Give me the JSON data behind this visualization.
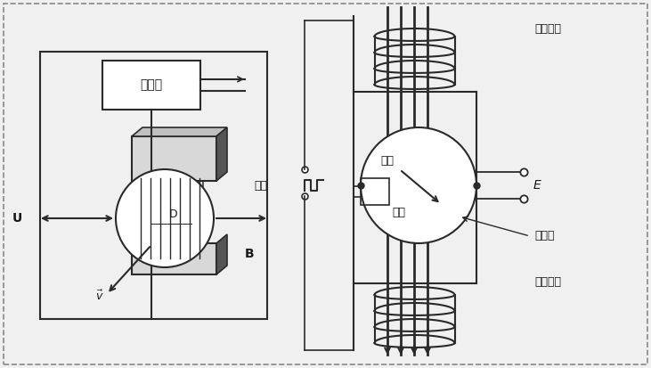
{
  "bg_color": "#f0f0f0",
  "line_color": "#2a2a2a",
  "text_color": "#1a1a1a",
  "fig_width": 7.31,
  "fig_height": 4.13,
  "labels": {
    "converter": "转换器",
    "U": "U",
    "B": "B",
    "V": "v",
    "D": "D",
    "fangbo": "方波",
    "dianji": "电极",
    "liusu": "流速",
    "E": "E",
    "excitation1": "励磁线圈",
    "excitation2": "励磁线圈",
    "measure_tube": "测量管"
  }
}
